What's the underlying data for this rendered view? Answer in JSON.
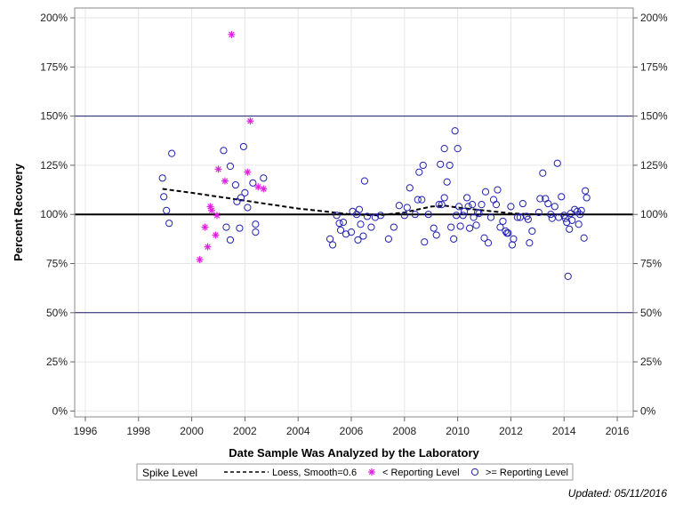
{
  "chart_data": {
    "type": "scatter",
    "xlabel": "Date Sample Was Analyzed by the Laboratory",
    "ylabel": "Percent Recovery",
    "xlim": [
      1995.6,
      2016.6
    ],
    "ylim": [
      -3,
      205
    ],
    "x_ticks": [
      1996,
      1998,
      2000,
      2002,
      2004,
      2006,
      2008,
      2010,
      2012,
      2014,
      2016
    ],
    "y_ticks": [
      0,
      25,
      50,
      75,
      100,
      125,
      150,
      175,
      200
    ],
    "y_tick_labels": [
      "0%",
      "25%",
      "50%",
      "75%",
      "100%",
      "125%",
      "150%",
      "175%",
      "200%"
    ],
    "reference_lines": {
      "control_limits": [
        50,
        150
      ],
      "target": 100
    },
    "grid": true,
    "legend": {
      "title": "Spike Level",
      "placement": "bottom",
      "entries": [
        {
          "label": "Loess, Smooth=0.6",
          "marker": "dashed-line"
        },
        {
          "label": "< Reporting Level",
          "marker": "star"
        },
        {
          "label": ">= Reporting Level",
          "marker": "circle"
        }
      ]
    },
    "colors": {
      "below": "#e020e0",
      "above": "#2020b0",
      "loess": "#000000",
      "reference": "#1a1a6e"
    },
    "loess": [
      [
        1998.9,
        113
      ],
      [
        2000.0,
        111
      ],
      [
        2001.0,
        109
      ],
      [
        2002.0,
        107
      ],
      [
        2003.0,
        105
      ],
      [
        2004.0,
        103
      ],
      [
        2005.0,
        101.5
      ],
      [
        2006.0,
        100
      ],
      [
        2007.0,
        99.5
      ],
      [
        2008.0,
        101
      ],
      [
        2009.0,
        104
      ],
      [
        2009.5,
        104.5
      ],
      [
        2010.0,
        103.5
      ],
      [
        2011.0,
        102
      ],
      [
        2012.0,
        100.5
      ],
      [
        2013.0,
        100
      ],
      [
        2014.0,
        100
      ]
    ],
    "series": [
      {
        "name": "< Reporting Level",
        "marker": "star",
        "points": [
          [
            2001.5,
            191.5
          ],
          [
            2002.2,
            147.5
          ],
          [
            2001.0,
            123
          ],
          [
            2002.1,
            121.5
          ],
          [
            2001.25,
            117
          ],
          [
            2002.5,
            114
          ],
          [
            2002.7,
            113
          ],
          [
            2000.7,
            104
          ],
          [
            2000.75,
            102
          ],
          [
            2000.95,
            99.5
          ],
          [
            2000.5,
            93.5
          ],
          [
            2000.9,
            89.5
          ],
          [
            2000.6,
            83.5
          ],
          [
            2000.3,
            77
          ]
        ]
      },
      {
        "name": ">= Reporting Level",
        "marker": "circle",
        "points": [
          [
            1998.9,
            118.5
          ],
          [
            1998.95,
            109
          ],
          [
            1999.05,
            102
          ],
          [
            1999.15,
            95.5
          ],
          [
            1999.25,
            131
          ],
          [
            2001.2,
            132.5
          ],
          [
            2001.45,
            124.5
          ],
          [
            2001.65,
            115
          ],
          [
            2001.7,
            106.5
          ],
          [
            2001.95,
            134.5
          ],
          [
            2001.85,
            108.5
          ],
          [
            2002.0,
            111
          ],
          [
            2002.1,
            103.5
          ],
          [
            2002.3,
            116
          ],
          [
            2002.4,
            95
          ],
          [
            2002.4,
            91
          ],
          [
            2002.7,
            118.5
          ],
          [
            2001.3,
            93.5
          ],
          [
            2001.45,
            87
          ],
          [
            2001.8,
            93
          ],
          [
            2005.2,
            87.5
          ],
          [
            2005.3,
            84.5
          ],
          [
            2005.45,
            99.5
          ],
          [
            2005.55,
            95.5
          ],
          [
            2005.6,
            92
          ],
          [
            2005.7,
            96
          ],
          [
            2005.8,
            90
          ],
          [
            2006.0,
            91
          ],
          [
            2006.05,
            101.5
          ],
          [
            2006.2,
            100
          ],
          [
            2006.25,
            87
          ],
          [
            2006.3,
            102.5
          ],
          [
            2006.35,
            95
          ],
          [
            2006.45,
            89
          ],
          [
            2006.5,
            117
          ],
          [
            2006.6,
            99
          ],
          [
            2006.75,
            93.5
          ],
          [
            2006.9,
            98.5
          ],
          [
            2007.1,
            99.5
          ],
          [
            2007.4,
            87.5
          ],
          [
            2007.6,
            93.5
          ],
          [
            2007.8,
            104.5
          ],
          [
            2008.0,
            99.5
          ],
          [
            2008.1,
            103.5
          ],
          [
            2008.2,
            113.5
          ],
          [
            2008.4,
            100
          ],
          [
            2008.5,
            107.5
          ],
          [
            2008.55,
            121.5
          ],
          [
            2008.65,
            107.5
          ],
          [
            2008.7,
            125
          ],
          [
            2008.75,
            86
          ],
          [
            2008.9,
            100
          ],
          [
            2009.1,
            93
          ],
          [
            2009.2,
            89.5
          ],
          [
            2009.3,
            105
          ],
          [
            2009.35,
            125.5
          ],
          [
            2009.4,
            105
          ],
          [
            2009.5,
            133.5
          ],
          [
            2009.5,
            108.5
          ],
          [
            2009.6,
            116.5
          ],
          [
            2009.7,
            125
          ],
          [
            2009.75,
            93.5
          ],
          [
            2009.85,
            87.5
          ],
          [
            2009.9,
            142.5
          ],
          [
            2009.95,
            99.5
          ],
          [
            2010.0,
            133.5
          ],
          [
            2010.05,
            104
          ],
          [
            2010.1,
            94
          ],
          [
            2010.2,
            99.5
          ],
          [
            2010.25,
            101.5
          ],
          [
            2010.35,
            108.5
          ],
          [
            2010.4,
            104
          ],
          [
            2010.45,
            93
          ],
          [
            2010.55,
            105
          ],
          [
            2010.6,
            98.5
          ],
          [
            2010.7,
            94.5
          ],
          [
            2010.75,
            101
          ],
          [
            2010.8,
            100.5
          ],
          [
            2010.9,
            105
          ],
          [
            2011.0,
            88
          ],
          [
            2011.05,
            111.5
          ],
          [
            2011.15,
            85.5
          ],
          [
            2011.25,
            98.5
          ],
          [
            2011.35,
            107.5
          ],
          [
            2011.45,
            105
          ],
          [
            2011.5,
            112.5
          ],
          [
            2011.6,
            93.5
          ],
          [
            2011.7,
            96.5
          ],
          [
            2011.8,
            91.5
          ],
          [
            2011.85,
            90.5
          ],
          [
            2011.9,
            90.5
          ],
          [
            2012.0,
            104
          ],
          [
            2012.05,
            84.5
          ],
          [
            2012.1,
            87.5
          ],
          [
            2012.25,
            98.5
          ],
          [
            2012.35,
            98.5
          ],
          [
            2012.45,
            105.5
          ],
          [
            2012.6,
            99
          ],
          [
            2012.65,
            97.5
          ],
          [
            2012.7,
            85.5
          ],
          [
            2012.8,
            91.5
          ],
          [
            2013.05,
            101
          ],
          [
            2013.1,
            108
          ],
          [
            2013.2,
            121
          ],
          [
            2013.3,
            108
          ],
          [
            2013.4,
            105.5
          ],
          [
            2013.5,
            100
          ],
          [
            2013.55,
            98
          ],
          [
            2013.65,
            104
          ],
          [
            2013.75,
            126
          ],
          [
            2013.8,
            98.5
          ],
          [
            2013.9,
            109
          ],
          [
            2014.0,
            99.5
          ],
          [
            2014.05,
            98
          ],
          [
            2014.1,
            96
          ],
          [
            2014.15,
            68.5
          ],
          [
            2014.2,
            92.5
          ],
          [
            2014.25,
            100.5
          ],
          [
            2014.3,
            97
          ],
          [
            2014.4,
            102.5
          ],
          [
            2014.5,
            101.5
          ],
          [
            2014.55,
            95
          ],
          [
            2014.6,
            100
          ],
          [
            2014.65,
            102
          ],
          [
            2014.75,
            88
          ],
          [
            2014.8,
            112
          ],
          [
            2014.85,
            108.5
          ]
        ]
      }
    ]
  },
  "footnote": "Updated: 05/11/2016"
}
